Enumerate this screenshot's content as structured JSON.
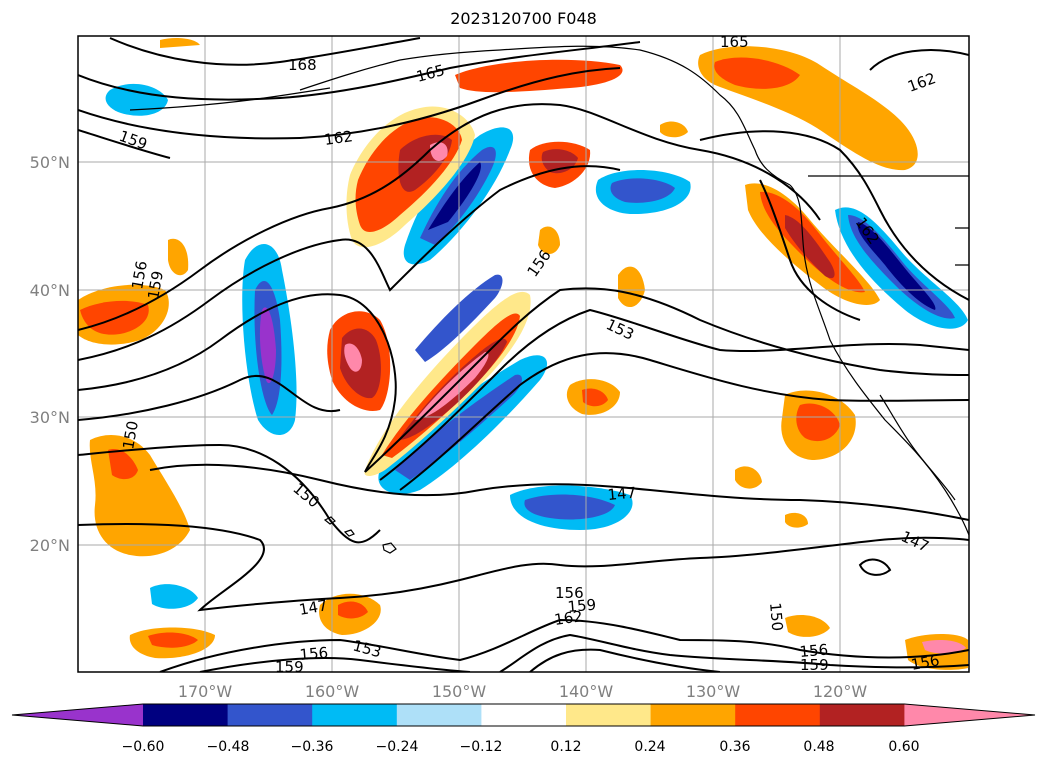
{
  "title": "2023120700 F048",
  "map": {
    "lat_labels": [
      "50°N",
      "40°N",
      "30°N",
      "20°N"
    ],
    "lon_labels": [
      "170°W",
      "160°W",
      "150°W",
      "140°W",
      "130°W",
      "120°W"
    ],
    "contour_labels": [
      "168",
      "165",
      "165",
      "162",
      "162",
      "159",
      "159",
      "156",
      "156",
      "153",
      "150",
      "150",
      "150",
      "147",
      "147",
      "147",
      "156",
      "159",
      "162",
      "153",
      "156",
      "159",
      "156",
      "159",
      "156",
      "162"
    ],
    "contour_color": "#000000",
    "gridlines": true
  },
  "colorbar": {
    "ticks": [
      "−0.60",
      "−0.48",
      "−0.36",
      "−0.24",
      "−0.12",
      "0.12",
      "0.24",
      "0.36",
      "0.48",
      "0.60"
    ],
    "colors": [
      "#9933cc",
      "#000080",
      "#3355cc",
      "#00bbf5",
      "#aee0f8",
      "#ffffff",
      "#ffe88a",
      "#ffa500",
      "#ff4500",
      "#b22222",
      "#ff88aa"
    ],
    "extend": "both"
  }
}
